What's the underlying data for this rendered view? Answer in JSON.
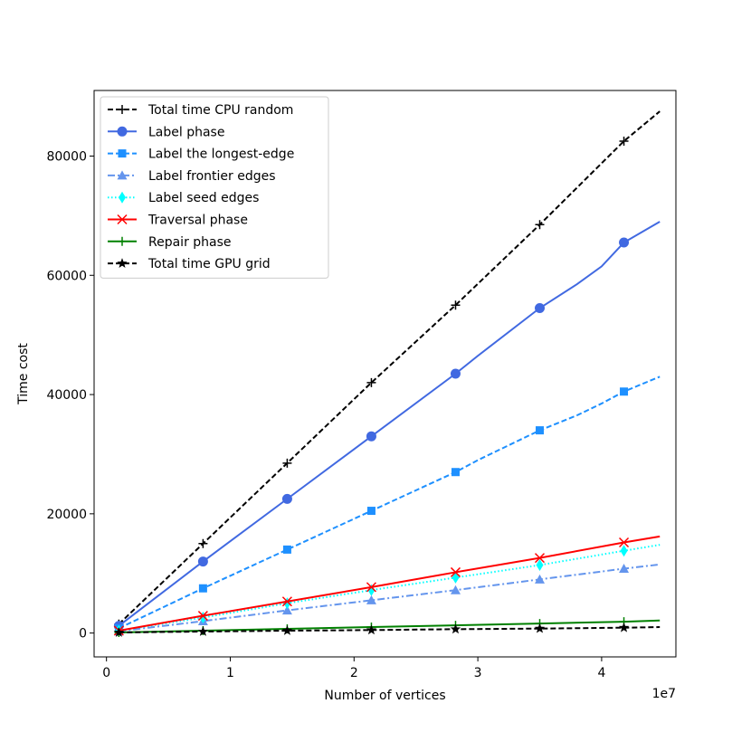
{
  "chart_data": {
    "type": "line",
    "title": "",
    "xlabel": "Number of vertices",
    "ylabel": "Time cost",
    "x_multiplier_label": "1e7",
    "xlim": [
      -0.1,
      4.6
    ],
    "ylim": [
      -4000,
      91000
    ],
    "x_ticks": [
      0,
      1,
      2,
      3,
      4
    ],
    "x_tick_labels": [
      "0",
      "1",
      "2",
      "3",
      "4"
    ],
    "y_ticks": [
      0,
      20000,
      40000,
      60000,
      80000
    ],
    "y_tick_labels": [
      "0",
      "20000",
      "40000",
      "60000",
      "80000"
    ],
    "grid": false,
    "legend_position": "upper-left",
    "marker_x": [
      0.1,
      0.78,
      1.46,
      2.14,
      2.82,
      3.5,
      4.18
    ],
    "series": [
      {
        "name": "Total time CPU random",
        "color": "#000000",
        "dash": "dashed",
        "marker": "plus",
        "x": [
          0.1,
          0.78,
          1.46,
          2.14,
          2.82,
          3.5,
          4.18,
          4.47
        ],
        "values": [
          1500,
          15000,
          28500,
          42000,
          55000,
          68500,
          82500,
          87500
        ]
      },
      {
        "name": "Label phase",
        "color": "#4169e1",
        "dash": "solid",
        "marker": "circle",
        "x": [
          0.1,
          0.78,
          1.46,
          2.14,
          2.82,
          3.0,
          3.5,
          3.8,
          4.0,
          4.18,
          4.47
        ],
        "values": [
          1200,
          12000,
          22500,
          33000,
          43500,
          46500,
          54500,
          58500,
          61500,
          65500,
          69000
        ]
      },
      {
        "name": "Label the longest-edge",
        "color": "#1e90ff",
        "dash": "dashed",
        "marker": "square",
        "x": [
          0.1,
          0.78,
          1.46,
          2.14,
          2.82,
          3.0,
          3.5,
          3.8,
          4.0,
          4.18,
          4.47
        ],
        "values": [
          800,
          7500,
          14000,
          20500,
          27000,
          29000,
          34000,
          36500,
          38500,
          40500,
          43000
        ]
      },
      {
        "name": "Label frontier edges",
        "color": "#6495ed",
        "dash": "dashdot",
        "marker": "triangle",
        "x": [
          0.1,
          0.78,
          1.46,
          2.14,
          2.82,
          3.5,
          4.18,
          4.47
        ],
        "values": [
          300,
          2000,
          3800,
          5500,
          7200,
          9000,
          10800,
          11500
        ]
      },
      {
        "name": "Label seed edges",
        "color": "#00ffff",
        "dash": "dotted",
        "marker": "diamond",
        "x": [
          0.1,
          0.78,
          1.46,
          2.14,
          2.82,
          3.5,
          4.18,
          4.47
        ],
        "values": [
          400,
          2600,
          5000,
          7200,
          9300,
          11400,
          13800,
          14800
        ]
      },
      {
        "name": "Traversal phase",
        "color": "#ff0000",
        "dash": "solid",
        "marker": "x",
        "x": [
          0.1,
          0.78,
          1.46,
          2.14,
          2.82,
          3.5,
          4.18,
          4.47
        ],
        "values": [
          400,
          2900,
          5300,
          7700,
          10200,
          12600,
          15200,
          16200
        ]
      },
      {
        "name": "Repair phase",
        "color": "#008000",
        "dash": "solid",
        "marker": "plus",
        "x": [
          0.1,
          0.78,
          1.46,
          2.14,
          2.82,
          3.5,
          4.18,
          4.47
        ],
        "values": [
          100,
          400,
          700,
          1000,
          1300,
          1600,
          1900,
          2100
        ]
      },
      {
        "name": "Total time GPU grid",
        "color": "#000000",
        "dash": "dashed",
        "marker": "star",
        "x": [
          0.1,
          0.78,
          1.46,
          2.14,
          2.82,
          3.5,
          4.18,
          4.47
        ],
        "values": [
          100,
          250,
          400,
          500,
          650,
          750,
          900,
          1000
        ]
      }
    ]
  }
}
